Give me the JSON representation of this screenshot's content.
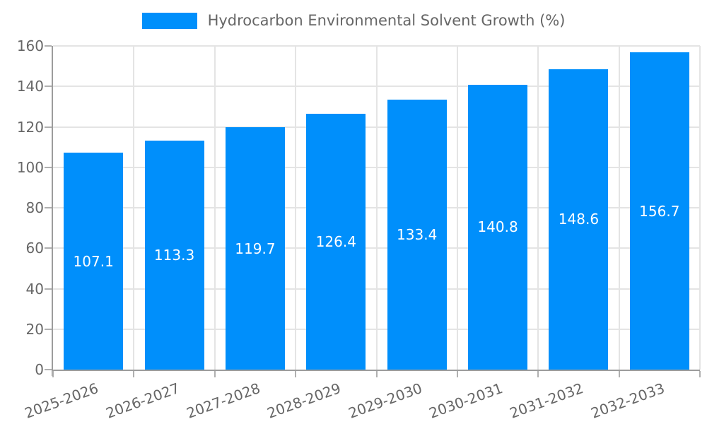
{
  "legend": {
    "label": "Hydrocarbon Environmental Solvent Growth (%)",
    "swatch_color": "#008FFB"
  },
  "chart_data": {
    "type": "bar",
    "title": "Hydrocarbon Environmental Solvent Growth (%)",
    "series_name": "Hydrocarbon Environmental Solvent Growth (%)",
    "categories": [
      "2025-2026",
      "2026-2027",
      "2027-2028",
      "2028-2029",
      "2029-2030",
      "2030-2031",
      "2031-2032",
      "2032-2033"
    ],
    "values": [
      107.1,
      113.3,
      119.7,
      126.4,
      133.4,
      140.8,
      148.6,
      156.7
    ],
    "value_labels": [
      "107.1",
      "113.3",
      "119.7",
      "126.4",
      "133.4",
      "140.8",
      "148.6",
      "156.7"
    ],
    "xlabel": "",
    "ylabel": "",
    "ylim": [
      0,
      160
    ],
    "yticks": [
      0,
      20,
      40,
      60,
      80,
      100,
      120,
      140,
      160
    ],
    "grid": true,
    "legend_position": "top",
    "data_label_position": "inside-center",
    "colors": {
      "bar": "#008FFB",
      "bar_label_text": "#ffffff",
      "grid_line": "#e4e4e4",
      "axis_line": "#9c9c9c",
      "tick_mark": "#b0b0b0",
      "axis_text": "#666666"
    }
  }
}
